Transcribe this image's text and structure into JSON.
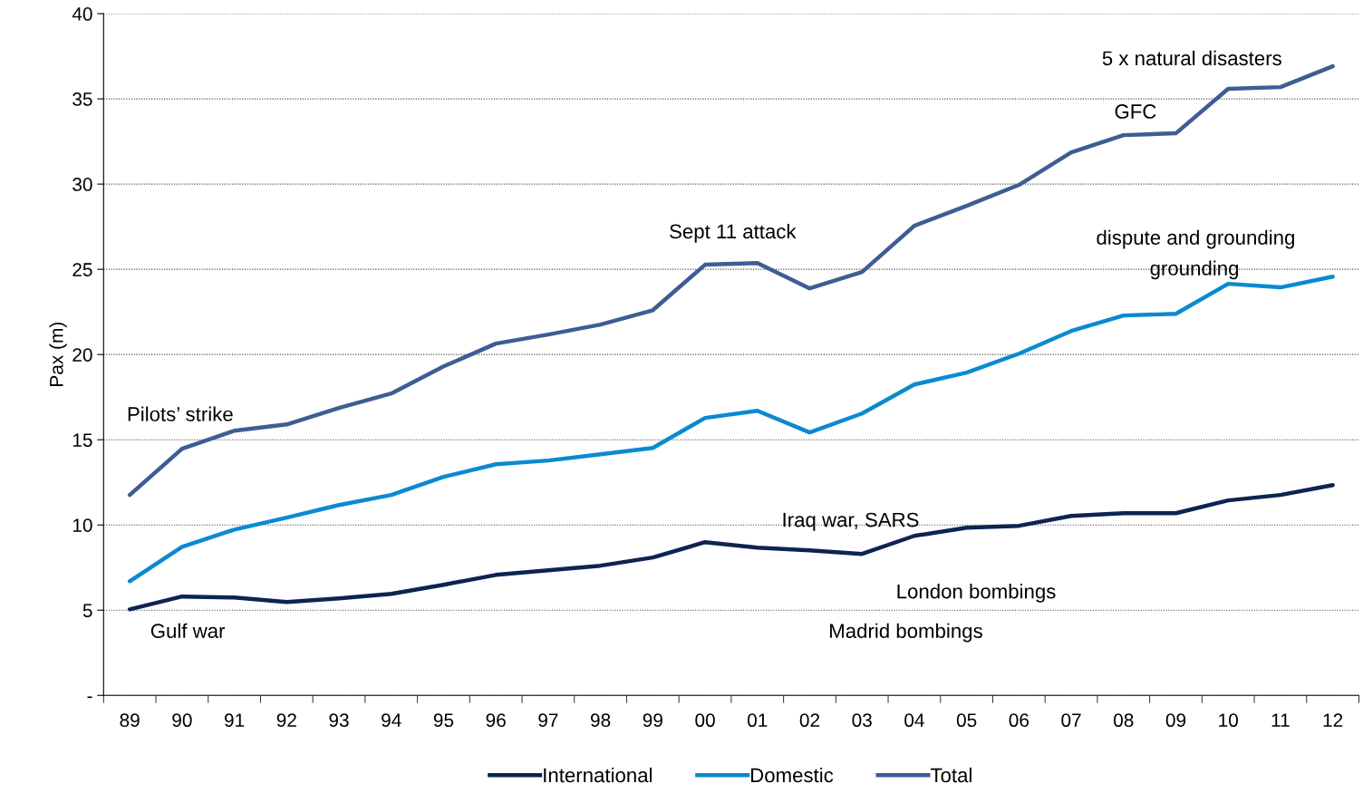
{
  "chart_data": {
    "type": "line",
    "ylabel": "Pax (m)",
    "categories": [
      "89",
      "90",
      "91",
      "92",
      "93",
      "94",
      "95",
      "96",
      "97",
      "98",
      "99",
      "00",
      "01",
      "02",
      "03",
      "04",
      "05",
      "06",
      "07",
      "08",
      "09",
      "10",
      "11",
      "12"
    ],
    "series": [
      {
        "name": "International",
        "color": "#0d2451",
        "values": [
          5.05,
          5.8,
          5.74,
          5.48,
          5.69,
          5.96,
          6.49,
          7.07,
          7.34,
          7.61,
          8.09,
          8.99,
          8.67,
          8.51,
          8.3,
          9.36,
          9.84,
          9.95,
          10.53,
          10.69,
          10.69,
          11.44,
          11.76,
          12.34
        ]
      },
      {
        "name": "Domestic",
        "color": "#0a8ad0",
        "values": [
          6.7,
          8.72,
          9.73,
          10.43,
          11.17,
          11.76,
          12.82,
          13.56,
          13.78,
          14.15,
          14.52,
          16.28,
          16.7,
          15.43,
          16.54,
          18.24,
          18.94,
          20.05,
          21.38,
          22.29,
          22.39,
          24.15,
          23.94,
          24.57
        ]
      },
      {
        "name": "Total",
        "color": "#3e5d94",
        "values": [
          11.76,
          14.47,
          15.53,
          15.9,
          16.86,
          17.71,
          19.3,
          20.64,
          21.17,
          21.76,
          22.6,
          25.27,
          25.37,
          23.88,
          24.84,
          27.55,
          28.72,
          29.95,
          31.86,
          32.87,
          32.98,
          35.59,
          35.69,
          36.91
        ]
      }
    ],
    "ylim": [
      0,
      40
    ],
    "yticks": [
      {
        "value": 0,
        "label": "-"
      },
      5,
      10,
      15,
      20,
      25,
      30,
      35,
      40
    ],
    "grid": "y",
    "legend": "bottom",
    "marker": "none",
    "line_style": "solid",
    "annotations": [
      "Pilots’ strike",
      "Gulf war",
      "Sept 11 attack",
      "Iraq war, SARS",
      "London bombings",
      "Madrid bombings",
      "GFC",
      "5 x natural disasters",
      "dispute and grounding",
      "grounding"
    ]
  }
}
